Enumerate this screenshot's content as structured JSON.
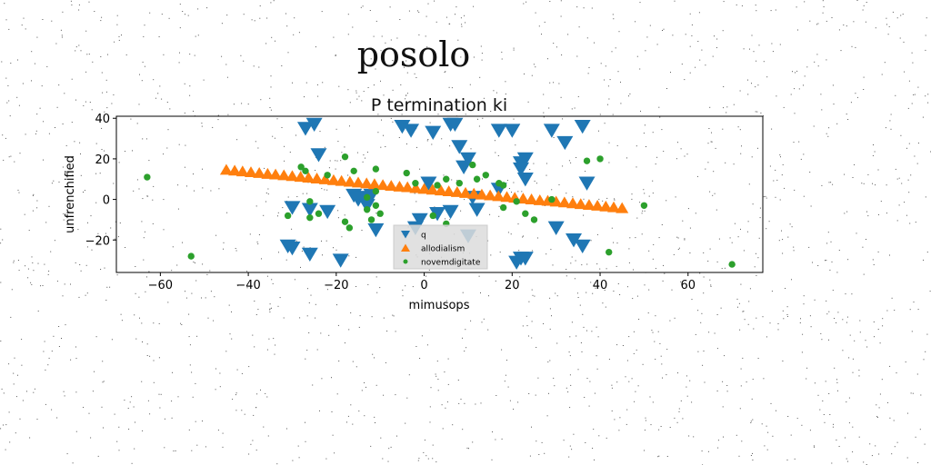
{
  "suptitle": "posolo",
  "chart_data": {
    "type": "scatter",
    "title": "P termination ki",
    "xlabel": "mimusops",
    "ylabel": "unfrenchified",
    "xlim": [
      -70,
      77
    ],
    "ylim": [
      -36,
      41
    ],
    "xticks": [
      -60,
      -40,
      -20,
      0,
      20,
      40,
      60
    ],
    "yticks": [
      -20,
      0,
      20,
      40
    ],
    "xtick_labels": [
      "−60",
      "−40",
      "−20",
      "0",
      "20",
      "40",
      "60"
    ],
    "ytick_labels": [
      "−20",
      "0",
      "20",
      "40"
    ],
    "grid": false,
    "legend_position": "lower-center",
    "series": [
      {
        "name": "q",
        "marker": "triangle-down",
        "color": "#1f77b4",
        "points": [
          [
            -27,
            35
          ],
          [
            -25,
            37
          ],
          [
            -24,
            22
          ],
          [
            -31,
            -23
          ],
          [
            -30,
            -24
          ],
          [
            -26,
            -27
          ],
          [
            -26,
            -5
          ],
          [
            -22,
            -6
          ],
          [
            -19,
            -30
          ],
          [
            -30,
            -4
          ],
          [
            -16,
            2
          ],
          [
            -15,
            0
          ],
          [
            -14,
            1
          ],
          [
            -13,
            -3
          ],
          [
            -12,
            2
          ],
          [
            -11,
            -15
          ],
          [
            -5,
            36
          ],
          [
            -3,
            34
          ],
          [
            2,
            33
          ],
          [
            6,
            37
          ],
          [
            7,
            37
          ],
          [
            8,
            26
          ],
          [
            9,
            16
          ],
          [
            10,
            20
          ],
          [
            11,
            1
          ],
          [
            12,
            -5
          ],
          [
            3,
            -7
          ],
          [
            -1,
            -10
          ],
          [
            -2,
            -14
          ],
          [
            1,
            8
          ],
          [
            6,
            -6
          ],
          [
            17,
            34
          ],
          [
            20,
            34
          ],
          [
            22,
            18
          ],
          [
            23,
            20
          ],
          [
            22,
            15
          ],
          [
            23,
            10
          ],
          [
            21,
            -31
          ],
          [
            22,
            -29
          ],
          [
            23,
            -29
          ],
          [
            29,
            34
          ],
          [
            30,
            -14
          ],
          [
            32,
            28
          ],
          [
            34,
            -20
          ],
          [
            36,
            -23
          ],
          [
            36,
            36
          ],
          [
            37,
            8
          ],
          [
            10,
            -18
          ],
          [
            17,
            5
          ]
        ]
      },
      {
        "name": "allodialism",
        "marker": "triangle-up",
        "color": "#ff7f0e",
        "points": [
          [
            -45.0,
            14.7
          ],
          [
            -43.1,
            14.3
          ],
          [
            -41.3,
            13.9
          ],
          [
            -39.4,
            13.5
          ],
          [
            -37.5,
            13.1
          ],
          [
            -35.6,
            12.7
          ],
          [
            -33.8,
            12.4
          ],
          [
            -31.9,
            12.0
          ],
          [
            -30.0,
            11.6
          ],
          [
            -28.1,
            11.2
          ],
          [
            -26.3,
            10.8
          ],
          [
            -24.4,
            10.4
          ],
          [
            -22.5,
            10.0
          ],
          [
            -20.6,
            9.6
          ],
          [
            -18.8,
            9.2
          ],
          [
            -16.9,
            8.8
          ],
          [
            -15.0,
            8.4
          ],
          [
            -13.1,
            8.0
          ],
          [
            -11.3,
            7.6
          ],
          [
            -9.4,
            7.2
          ],
          [
            -7.5,
            6.8
          ],
          [
            -5.6,
            6.4
          ],
          [
            -3.8,
            6.1
          ],
          [
            -1.9,
            5.7
          ],
          [
            0.0,
            5.3
          ],
          [
            1.9,
            4.9
          ],
          [
            3.8,
            4.5
          ],
          [
            5.6,
            4.1
          ],
          [
            7.5,
            3.7
          ],
          [
            9.4,
            3.3
          ],
          [
            11.3,
            2.9
          ],
          [
            13.1,
            2.5
          ],
          [
            15.0,
            2.1
          ],
          [
            16.9,
            1.7
          ],
          [
            18.8,
            1.3
          ],
          [
            20.6,
            0.9
          ],
          [
            22.5,
            0.5
          ],
          [
            24.4,
            0.1
          ],
          [
            26.3,
            -0.3
          ],
          [
            28.1,
            -0.6
          ],
          [
            30.0,
            -1.0
          ],
          [
            31.9,
            -1.4
          ],
          [
            33.8,
            -1.8
          ],
          [
            35.6,
            -2.2
          ],
          [
            37.5,
            -2.6
          ],
          [
            39.4,
            -3.0
          ],
          [
            41.3,
            -3.4
          ],
          [
            43.1,
            -3.8
          ],
          [
            45.0,
            -4.2
          ]
        ]
      },
      {
        "name": "novemdigitate",
        "marker": "circle",
        "color": "#2ca02c",
        "points": [
          [
            -63,
            11
          ],
          [
            -53,
            -28
          ],
          [
            -31,
            -8
          ],
          [
            -28,
            16
          ],
          [
            -27,
            14
          ],
          [
            -26,
            -1
          ],
          [
            -26,
            -9
          ],
          [
            -24,
            -7
          ],
          [
            -22,
            12
          ],
          [
            -18,
            21
          ],
          [
            -18,
            -11
          ],
          [
            -17,
            -14
          ],
          [
            -16,
            14
          ],
          [
            -13,
            -5
          ],
          [
            -12,
            -10
          ],
          [
            -11,
            -3
          ],
          [
            -11,
            15
          ],
          [
            -11,
            4
          ],
          [
            -4,
            13
          ],
          [
            -2,
            8
          ],
          [
            3,
            7
          ],
          [
            5,
            10
          ],
          [
            8,
            8
          ],
          [
            11,
            17
          ],
          [
            12,
            10
          ],
          [
            14,
            12
          ],
          [
            17,
            8
          ],
          [
            18,
            -4
          ],
          [
            18,
            7
          ],
          [
            21,
            -1
          ],
          [
            23,
            -7
          ],
          [
            25,
            -10
          ],
          [
            29,
            0
          ],
          [
            37,
            19
          ],
          [
            40,
            20
          ],
          [
            42,
            -26
          ],
          [
            50,
            -3
          ],
          [
            70,
            -32
          ],
          [
            -10,
            -7
          ],
          [
            -13,
            1
          ],
          [
            2,
            -8
          ],
          [
            5,
            -12
          ]
        ]
      }
    ]
  }
}
